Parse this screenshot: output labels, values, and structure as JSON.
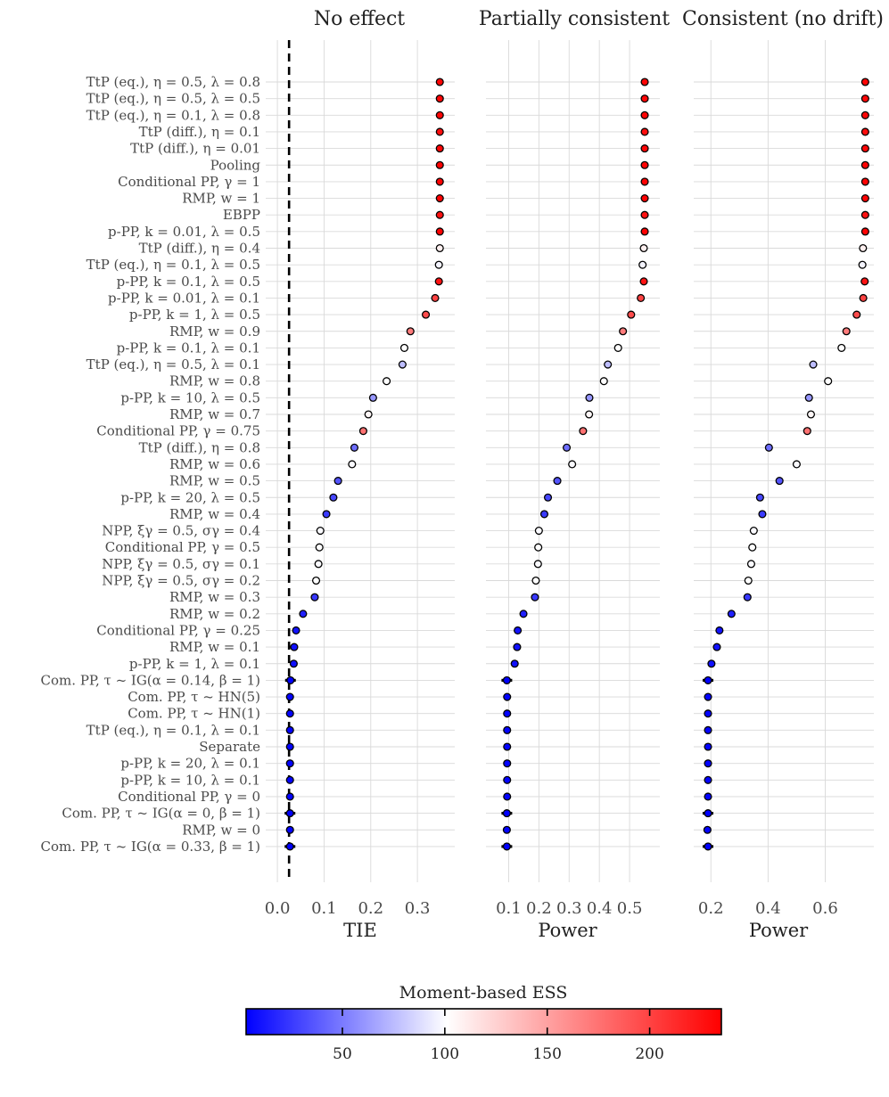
{
  "chart_data": {
    "type": "scatter",
    "row_labels": [
      "TtP (eq.), η = 0.5, λ = 0.8",
      "TtP (eq.), η = 0.5, λ = 0.5",
      "TtP (eq.), η = 0.1, λ = 0.8",
      "TtP (diff.), η = 0.1",
      "TtP (diff.), η = 0.01",
      "Pooling",
      "Conditional PP, γ = 1",
      "RMP, w = 1",
      "EBPP",
      "p-PP, k = 0.01, λ = 0.5",
      "TtP (diff.), η = 0.4",
      "TtP (eq.), η = 0.1, λ = 0.5",
      "p-PP, k = 0.1, λ = 0.5",
      "p-PP, k = 0.01, λ = 0.1",
      "p-PP, k = 1, λ = 0.5",
      "RMP, w = 0.9",
      "p-PP, k = 0.1, λ = 0.1",
      "TtP (eq.), η = 0.5, λ = 0.1",
      "RMP, w = 0.8",
      "p-PP, k = 10, λ = 0.5",
      "RMP, w = 0.7",
      "Conditional PP, γ = 0.75",
      "TtP (diff.), η = 0.8",
      "RMP, w = 0.6",
      "RMP, w = 0.5",
      "p-PP, k = 20, λ = 0.5",
      "RMP, w = 0.4",
      "NPP, ξγ = 0.5, σγ = 0.4",
      "Conditional PP, γ = 0.5",
      "NPP, ξγ = 0.5, σγ = 0.1",
      "NPP, ξγ = 0.5, σγ = 0.2",
      "RMP, w = 0.3",
      "RMP, w = 0.2",
      "Conditional PP, γ = 0.25",
      "RMP, w = 0.1",
      "p-PP, k = 1, λ = 0.1",
      "Com. PP, τ ~ IG(α = 0.14, β = 1)",
      "Com. PP, τ ~ HN(5)",
      "Com. PP, τ ~ HN(1)",
      "TtP (eq.), η = 0.1, λ = 0.1",
      "Separate",
      "p-PP, k = 20, λ = 0.1",
      "p-PP, k = 10, λ = 0.1",
      "Conditional PP, γ = 0",
      "Com. PP, τ ~ IG(α = 0, β = 1)",
      "RMP, w = 0",
      "Com. PP, τ ~ IG(α = 0.33, β = 1)"
    ],
    "ess": [
      233,
      232,
      233,
      228,
      232,
      234,
      234,
      234,
      226,
      234,
      108,
      96,
      225,
      200,
      195,
      170,
      100,
      75,
      100,
      60,
      104,
      175,
      45,
      98,
      35,
      30,
      25,
      98,
      100,
      98,
      100,
      24,
      15,
      10,
      9,
      9,
      3,
      4,
      4,
      4,
      4,
      4,
      4,
      4,
      3,
      4,
      3
    ],
    "panels": [
      {
        "title": "No effect",
        "xlabel": "TIE",
        "xlim": [
          -0.025,
          0.38
        ],
        "xticks": [
          0.0,
          0.1,
          0.2,
          0.3
        ],
        "xtick_labels": [
          "0.0",
          "0.1",
          "0.2",
          "0.3"
        ],
        "reference_line": 0.025,
        "values": [
          0.348,
          0.348,
          0.348,
          0.348,
          0.348,
          0.348,
          0.348,
          0.348,
          0.348,
          0.348,
          0.348,
          0.346,
          0.346,
          0.338,
          0.318,
          0.285,
          0.272,
          0.268,
          0.234,
          0.205,
          0.195,
          0.184,
          0.165,
          0.16,
          0.13,
          0.12,
          0.105,
          0.092,
          0.09,
          0.088,
          0.083,
          0.08,
          0.055,
          0.04,
          0.036,
          0.035,
          0.028,
          0.027,
          0.027,
          0.027,
          0.027,
          0.027,
          0.027,
          0.027,
          0.027,
          0.027,
          0.027
        ],
        "error_rows": [
          36,
          44,
          46
        ]
      },
      {
        "title": "Partially consistent",
        "xlabel": "Power",
        "xlim": [
          0.025,
          0.6
        ],
        "xticks": [
          0.1,
          0.2,
          0.3,
          0.4,
          0.5
        ],
        "xtick_labels": [
          "0.1",
          "0.2",
          "0.3",
          "0.4",
          "0.5"
        ],
        "values": [
          0.55,
          0.55,
          0.55,
          0.55,
          0.55,
          0.55,
          0.55,
          0.55,
          0.55,
          0.55,
          0.547,
          0.543,
          0.547,
          0.537,
          0.505,
          0.478,
          0.462,
          0.428,
          0.415,
          0.367,
          0.366,
          0.346,
          0.292,
          0.31,
          0.261,
          0.23,
          0.218,
          0.2,
          0.198,
          0.197,
          0.19,
          0.187,
          0.149,
          0.13,
          0.128,
          0.12,
          0.094,
          0.095,
          0.095,
          0.095,
          0.095,
          0.095,
          0.095,
          0.095,
          0.094,
          0.094,
          0.094
        ],
        "error_rows": [
          36,
          44,
          46
        ]
      },
      {
        "title": "Consistent (no drift)",
        "xlabel": "Power",
        "xlim": [
          0.14,
          0.77
        ],
        "xticks": [
          0.2,
          0.4,
          0.6
        ],
        "xtick_labels": [
          "0.2",
          "0.4",
          "0.6"
        ],
        "values": [
          0.74,
          0.74,
          0.74,
          0.74,
          0.74,
          0.74,
          0.74,
          0.74,
          0.74,
          0.74,
          0.732,
          0.73,
          0.738,
          0.733,
          0.71,
          0.674,
          0.657,
          0.558,
          0.61,
          0.543,
          0.55,
          0.537,
          0.403,
          0.5,
          0.44,
          0.372,
          0.38,
          0.35,
          0.345,
          0.341,
          0.331,
          0.328,
          0.272,
          0.23,
          0.221,
          0.202,
          0.19,
          0.19,
          0.19,
          0.19,
          0.19,
          0.19,
          0.19,
          0.19,
          0.19,
          0.188,
          0.19
        ],
        "error_rows": [
          36,
          44,
          46
        ]
      }
    ],
    "colorbar": {
      "title": "Moment-based ESS",
      "range": [
        3,
        235
      ],
      "ticks": [
        50,
        100,
        150,
        200
      ],
      "tick_labels": [
        "50",
        "100",
        "150",
        "200"
      ],
      "colors": [
        "#0000ff",
        "#ffffff",
        "#ff0000"
      ],
      "midpoint": 100
    },
    "grid": true,
    "legend": "bottom"
  }
}
